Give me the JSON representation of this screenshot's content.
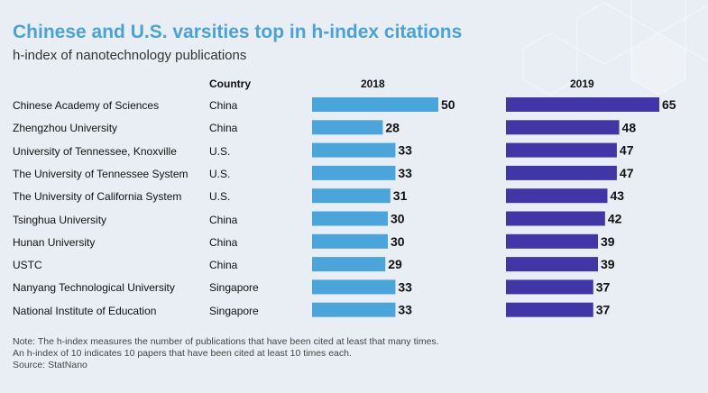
{
  "title": "Chinese and U.S. varsities top in h-index citations",
  "subtitle": "h-index of nanotechnology publications",
  "headers": {
    "country": "Country",
    "col2018": "2018",
    "col2019": "2019"
  },
  "colors": {
    "bar2018": "#4aa5db",
    "bar2019": "#4136a7",
    "title": "#4aa3d6"
  },
  "chart_data": {
    "type": "bar",
    "categories": [
      "Chinese Academy of Sciences",
      "Zhengzhou University",
      "University of Tennessee, Knoxville",
      "The University of Tennessee System",
      "The University of California System",
      "Tsinghua University",
      "Hunan University",
      "USTC",
      "Nanyang Technological University",
      "National Institute of Education"
    ],
    "countries": [
      "China",
      "China",
      "U.S.",
      "U.S.",
      "U.S.",
      "China",
      "China",
      "China",
      "Singapore",
      "Singapore"
    ],
    "series": [
      {
        "name": "2018",
        "values": [
          50,
          28,
          33,
          33,
          31,
          30,
          30,
          29,
          33,
          33
        ]
      },
      {
        "name": "2019",
        "values": [
          65,
          48,
          47,
          47,
          43,
          42,
          39,
          39,
          37,
          37
        ]
      }
    ],
    "title": "Chinese and U.S. varsities top in h-index citations",
    "xlabel": "",
    "ylabel": ""
  },
  "notes": [
    "Note: The h-index measures the number of publications that have been cited at least that many times.",
    "An h-index of 10 indicates 10 papers that have been cited at least 10 times each.",
    "Source: StatNano"
  ]
}
